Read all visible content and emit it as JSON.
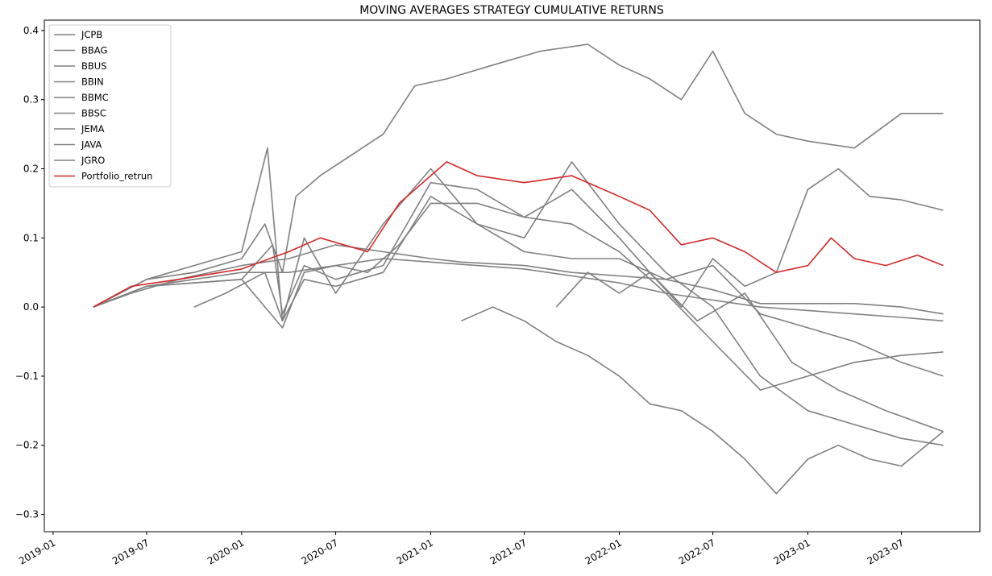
{
  "chart_data": {
    "type": "line",
    "title": "MOVING AVERAGES STRATEGY CUMULATIVE RETURNS",
    "xlabel": "",
    "ylabel": "",
    "xlim": [
      "2018-12-15",
      "2023-11-30"
    ],
    "ylim": [
      -0.325,
      0.415
    ],
    "x_ticks": [
      "2019-01",
      "2019-07",
      "2020-01",
      "2020-07",
      "2021-01",
      "2021-07",
      "2022-01",
      "2022-07",
      "2023-01",
      "2023-07"
    ],
    "y_ticks": [
      0.4,
      0.3,
      0.2,
      0.1,
      0.0,
      -0.1,
      -0.2,
      -0.3
    ],
    "y_tick_labels": [
      "0.4",
      "0.3",
      "0.2",
      "0.1",
      "0.0",
      "−0.1",
      "−0.2",
      "−0.3"
    ],
    "grid": false,
    "legend_position": "top-left",
    "colors": {
      "series_default": "#808080",
      "portfolio": "#d62728"
    },
    "series": [
      {
        "name": "JCPB",
        "color": "#808080",
        "points": [
          [
            "2019-03-20",
            0.0
          ],
          [
            "2019-06-01",
            0.02
          ],
          [
            "2019-09-01",
            0.04
          ],
          [
            "2020-01-01",
            0.06
          ],
          [
            "2020-04-01",
            0.07
          ],
          [
            "2020-07-01",
            0.09
          ],
          [
            "2020-10-01",
            0.08
          ],
          [
            "2021-01-01",
            0.07
          ],
          [
            "2021-03-01",
            0.065
          ],
          [
            "2021-07-01",
            0.06
          ],
          [
            "2021-10-01",
            0.05
          ],
          [
            "2022-01-01",
            0.045
          ],
          [
            "2022-04-01",
            0.04
          ],
          [
            "2022-07-01",
            0.025
          ],
          [
            "2022-10-01",
            0.005
          ],
          [
            "2023-01-01",
            0.005
          ],
          [
            "2023-04-01",
            0.005
          ],
          [
            "2023-07-01",
            0.0
          ],
          [
            "2023-09-20",
            -0.01
          ]
        ]
      },
      {
        "name": "BBAG",
        "color": "#808080",
        "points": [
          [
            "2019-03-20",
            0.0
          ],
          [
            "2019-07-01",
            0.03
          ],
          [
            "2020-01-01",
            0.05
          ],
          [
            "2020-04-01",
            0.05
          ],
          [
            "2020-07-01",
            0.06
          ],
          [
            "2020-10-01",
            0.07
          ],
          [
            "2021-01-01",
            0.065
          ],
          [
            "2021-04-01",
            0.06
          ],
          [
            "2021-07-01",
            0.055
          ],
          [
            "2021-10-01",
            0.045
          ],
          [
            "2022-01-01",
            0.035
          ],
          [
            "2022-04-01",
            0.02
          ],
          [
            "2022-07-01",
            0.01
          ],
          [
            "2022-10-01",
            0.0
          ],
          [
            "2023-01-01",
            -0.005
          ],
          [
            "2023-04-01",
            -0.01
          ],
          [
            "2023-07-01",
            -0.015
          ],
          [
            "2023-09-20",
            -0.02
          ]
        ]
      },
      {
        "name": "BBUS",
        "color": "#808080",
        "points": [
          [
            "2019-03-20",
            0.0
          ],
          [
            "2019-07-01",
            0.04
          ],
          [
            "2019-10-01",
            0.05
          ],
          [
            "2020-01-01",
            0.07
          ],
          [
            "2020-02-15",
            0.12
          ],
          [
            "2020-03-20",
            0.05
          ],
          [
            "2020-04-15",
            0.16
          ],
          [
            "2020-06-01",
            0.19
          ],
          [
            "2020-08-01",
            0.22
          ],
          [
            "2020-10-01",
            0.25
          ],
          [
            "2020-12-01",
            0.32
          ],
          [
            "2021-02-01",
            0.33
          ],
          [
            "2021-05-01",
            0.35
          ],
          [
            "2021-08-01",
            0.37
          ],
          [
            "2021-11-01",
            0.38
          ],
          [
            "2022-01-01",
            0.35
          ],
          [
            "2022-03-01",
            0.33
          ],
          [
            "2022-05-01",
            0.3
          ],
          [
            "2022-07-01",
            0.37
          ],
          [
            "2022-09-01",
            0.28
          ],
          [
            "2022-11-01",
            0.25
          ],
          [
            "2023-01-01",
            0.24
          ],
          [
            "2023-04-01",
            0.23
          ],
          [
            "2023-07-01",
            0.28
          ],
          [
            "2023-09-20",
            0.28
          ]
        ]
      },
      {
        "name": "BBIN",
        "color": "#808080",
        "points": [
          [
            "2019-03-20",
            0.0
          ],
          [
            "2019-07-01",
            0.03
          ],
          [
            "2020-01-01",
            0.04
          ],
          [
            "2020-03-20",
            -0.03
          ],
          [
            "2020-05-01",
            0.05
          ],
          [
            "2020-07-01",
            0.06
          ],
          [
            "2020-09-01",
            0.05
          ],
          [
            "2020-11-01",
            0.09
          ],
          [
            "2021-01-01",
            0.15
          ],
          [
            "2021-04-01",
            0.15
          ],
          [
            "2021-07-01",
            0.13
          ],
          [
            "2021-10-01",
            0.12
          ],
          [
            "2022-01-01",
            0.08
          ],
          [
            "2022-04-01",
            0.02
          ],
          [
            "2022-07-01",
            -0.05
          ],
          [
            "2022-10-01",
            -0.12
          ],
          [
            "2023-01-01",
            -0.1
          ],
          [
            "2023-04-01",
            -0.08
          ],
          [
            "2023-07-01",
            -0.07
          ],
          [
            "2023-09-20",
            -0.065
          ]
        ]
      },
      {
        "name": "BBMC",
        "color": "#808080",
        "points": [
          [
            "2019-03-20",
            0.0
          ],
          [
            "2019-07-01",
            0.03
          ],
          [
            "2020-01-01",
            0.04
          ],
          [
            "2020-03-01",
            0.09
          ],
          [
            "2020-03-20",
            -0.01
          ],
          [
            "2020-05-01",
            0.06
          ],
          [
            "2020-07-01",
            0.04
          ],
          [
            "2020-10-01",
            0.06
          ],
          [
            "2021-01-01",
            0.18
          ],
          [
            "2021-04-01",
            0.17
          ],
          [
            "2021-07-01",
            0.13
          ],
          [
            "2021-10-01",
            0.17
          ],
          [
            "2022-01-01",
            0.1
          ],
          [
            "2022-03-01",
            0.05
          ],
          [
            "2022-06-01",
            -0.02
          ],
          [
            "2022-09-01",
            0.02
          ],
          [
            "2022-12-01",
            -0.08
          ],
          [
            "2023-03-01",
            -0.12
          ],
          [
            "2023-06-01",
            -0.15
          ],
          [
            "2023-09-20",
            -0.18
          ]
        ]
      },
      {
        "name": "BBSC",
        "color": "#808080",
        "points": [
          [
            "2019-03-20",
            0.0
          ],
          [
            "2019-07-01",
            0.04
          ],
          [
            "2019-10-01",
            0.06
          ],
          [
            "2020-01-01",
            0.08
          ],
          [
            "2020-02-20",
            0.23
          ],
          [
            "2020-03-20",
            -0.02
          ],
          [
            "2020-05-01",
            0.1
          ],
          [
            "2020-07-01",
            0.02
          ],
          [
            "2020-10-01",
            0.12
          ],
          [
            "2021-01-01",
            0.2
          ],
          [
            "2021-04-01",
            0.12
          ],
          [
            "2021-07-01",
            0.1
          ],
          [
            "2021-10-01",
            0.21
          ],
          [
            "2022-01-01",
            0.12
          ],
          [
            "2022-04-01",
            0.05
          ],
          [
            "2022-07-01",
            0.0
          ],
          [
            "2022-10-01",
            -0.1
          ],
          [
            "2023-01-01",
            -0.15
          ],
          [
            "2023-04-01",
            -0.17
          ],
          [
            "2023-07-01",
            -0.19
          ],
          [
            "2023-09-20",
            -0.2
          ]
        ]
      },
      {
        "name": "JEMA",
        "color": "#808080",
        "points": [
          [
            "2021-03-01",
            -0.02
          ],
          [
            "2021-05-01",
            0.0
          ],
          [
            "2021-07-01",
            -0.02
          ],
          [
            "2021-09-01",
            -0.05
          ],
          [
            "2021-11-01",
            -0.07
          ],
          [
            "2022-01-01",
            -0.1
          ],
          [
            "2022-03-01",
            -0.14
          ],
          [
            "2022-05-01",
            -0.15
          ],
          [
            "2022-07-01",
            -0.18
          ],
          [
            "2022-09-01",
            -0.22
          ],
          [
            "2022-11-01",
            -0.27
          ],
          [
            "2023-01-01",
            -0.22
          ],
          [
            "2023-03-01",
            -0.2
          ],
          [
            "2023-05-01",
            -0.22
          ],
          [
            "2023-07-01",
            -0.23
          ],
          [
            "2023-09-20",
            -0.18
          ]
        ]
      },
      {
        "name": "JAVA",
        "color": "#808080",
        "points": [
          [
            "2019-10-01",
            0.0
          ],
          [
            "2019-12-01",
            0.02
          ],
          [
            "2020-02-15",
            0.05
          ],
          [
            "2020-03-20",
            -0.02
          ],
          [
            "2020-05-01",
            0.04
          ],
          [
            "2020-07-01",
            0.03
          ],
          [
            "2020-10-01",
            0.05
          ],
          [
            "2021-01-01",
            0.16
          ],
          [
            "2021-04-01",
            0.12
          ],
          [
            "2021-07-01",
            0.08
          ],
          [
            "2021-10-01",
            0.07
          ],
          [
            "2022-01-01",
            0.07
          ],
          [
            "2022-04-01",
            0.04
          ],
          [
            "2022-07-01",
            0.06
          ],
          [
            "2022-10-01",
            -0.01
          ],
          [
            "2023-01-01",
            -0.03
          ],
          [
            "2023-04-01",
            -0.05
          ],
          [
            "2023-07-01",
            -0.08
          ],
          [
            "2023-09-20",
            -0.1
          ]
        ]
      },
      {
        "name": "JGRO",
        "color": "#808080",
        "points": [
          [
            "2021-09-01",
            0.0
          ],
          [
            "2021-11-01",
            0.05
          ],
          [
            "2022-01-01",
            0.02
          ],
          [
            "2022-03-01",
            0.05
          ],
          [
            "2022-05-01",
            0.0
          ],
          [
            "2022-07-01",
            0.07
          ],
          [
            "2022-09-01",
            0.03
          ],
          [
            "2022-11-01",
            0.05
          ],
          [
            "2023-01-01",
            0.17
          ],
          [
            "2023-03-01",
            0.2
          ],
          [
            "2023-05-01",
            0.16
          ],
          [
            "2023-07-01",
            0.155
          ],
          [
            "2023-09-20",
            0.14
          ]
        ]
      },
      {
        "name": "Portfolio_retrun",
        "color": "#d62728",
        "points": [
          [
            "2019-03-20",
            0.0
          ],
          [
            "2019-06-01",
            0.03
          ],
          [
            "2019-09-01",
            0.04
          ],
          [
            "2020-01-01",
            0.055
          ],
          [
            "2020-04-01",
            0.08
          ],
          [
            "2020-06-01",
            0.1
          ],
          [
            "2020-09-01",
            0.08
          ],
          [
            "2020-11-01",
            0.15
          ],
          [
            "2021-01-01",
            0.19
          ],
          [
            "2021-02-01",
            0.21
          ],
          [
            "2021-04-01",
            0.19
          ],
          [
            "2021-07-01",
            0.18
          ],
          [
            "2021-10-01",
            0.19
          ],
          [
            "2022-01-01",
            0.16
          ],
          [
            "2022-03-01",
            0.14
          ],
          [
            "2022-05-01",
            0.09
          ],
          [
            "2022-07-01",
            0.1
          ],
          [
            "2022-09-01",
            0.08
          ],
          [
            "2022-11-01",
            0.05
          ],
          [
            "2023-01-01",
            0.06
          ],
          [
            "2023-02-15",
            0.1
          ],
          [
            "2023-04-01",
            0.07
          ],
          [
            "2023-06-01",
            0.06
          ],
          [
            "2023-08-01",
            0.075
          ],
          [
            "2023-09-20",
            0.06
          ]
        ]
      }
    ]
  }
}
